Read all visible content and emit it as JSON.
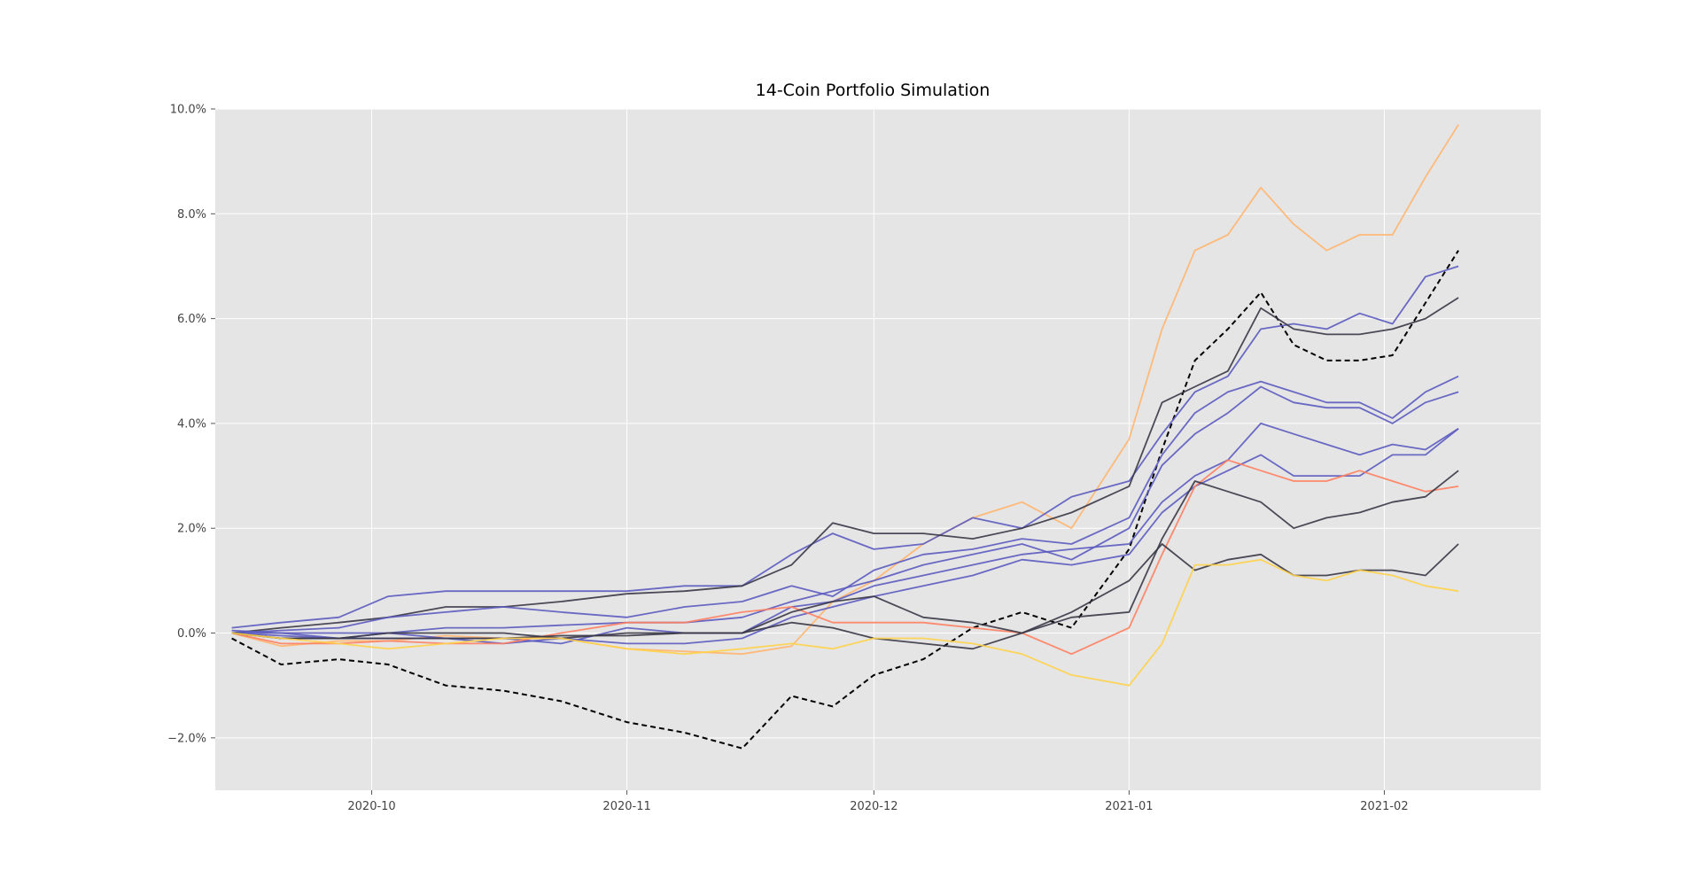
{
  "chart_data": {
    "type": "line",
    "title": "14-Coin Portfolio Simulation",
    "xlabel": "",
    "ylabel": "",
    "x_tick_labels": [
      "2020-10",
      "2020-11",
      "2020-12",
      "2021-01",
      "2021-02"
    ],
    "x_tick_dates": [
      "2020-10-01",
      "2020-11-01",
      "2020-12-01",
      "2021-01-01",
      "2021-02-01"
    ],
    "y_tick_labels": [
      "−2.0%",
      "0.0%",
      "2.0%",
      "4.0%",
      "6.0%",
      "8.0%",
      "10.0%"
    ],
    "y_ticks": [
      -2,
      0,
      2,
      4,
      6,
      8,
      10
    ],
    "xlim": [
      "2020-09-12",
      "2021-02-20"
    ],
    "ylim": [
      -3,
      10
    ],
    "y_unit": "%",
    "grid": true,
    "background": "#e5e5e5",
    "series_x": [
      "2020-09-14",
      "2020-09-20",
      "2020-09-27",
      "2020-10-03",
      "2020-10-10",
      "2020-10-17",
      "2020-10-24",
      "2020-11-01",
      "2020-11-08",
      "2020-11-15",
      "2020-11-21",
      "2020-11-26",
      "2020-12-01",
      "2020-12-07",
      "2020-12-13",
      "2020-12-19",
      "2020-12-25",
      "2021-01-01",
      "2021-01-05",
      "2021-01-09",
      "2021-01-13",
      "2021-01-17",
      "2021-01-21",
      "2021-01-25",
      "2021-01-29",
      "2021-02-02",
      "2021-02-06",
      "2021-02-10"
    ],
    "series": [
      {
        "color": "#ffb56e",
        "dashed": false,
        "values": [
          0.0,
          -0.25,
          -0.15,
          -0.15,
          -0.05,
          -0.1,
          -0.1,
          -0.3,
          -0.35,
          -0.4,
          -0.25,
          0.6,
          1.0,
          1.7,
          2.2,
          2.5,
          2.0,
          3.7,
          5.8,
          7.3,
          7.6,
          8.5,
          7.8,
          7.3,
          7.6,
          7.6,
          8.7,
          9.7
        ]
      },
      {
        "color": "#000000",
        "dashed": true,
        "values": [
          -0.1,
          -0.6,
          -0.5,
          -0.6,
          -1.0,
          -1.1,
          -1.3,
          -1.7,
          -1.9,
          -2.2,
          -1.2,
          -1.4,
          -0.8,
          -0.5,
          0.1,
          0.4,
          0.1,
          1.6,
          3.5,
          5.2,
          5.8,
          6.5,
          5.5,
          5.2,
          5.2,
          5.3,
          6.3,
          7.3
        ]
      },
      {
        "color": "#5b5bc0",
        "dashed": false,
        "values": [
          0.1,
          0.2,
          0.3,
          0.7,
          0.8,
          0.8,
          0.8,
          0.8,
          0.9,
          0.9,
          1.5,
          1.9,
          1.6,
          1.7,
          2.2,
          2.0,
          2.6,
          2.9,
          3.8,
          4.6,
          4.9,
          5.8,
          5.9,
          5.8,
          6.1,
          5.9,
          6.8,
          7.0
        ]
      },
      {
        "color": "#3a3746",
        "dashed": false,
        "values": [
          0.0,
          0.1,
          0.2,
          0.3,
          0.5,
          0.5,
          0.6,
          0.75,
          0.8,
          0.9,
          1.3,
          2.1,
          1.9,
          1.9,
          1.8,
          2.0,
          2.3,
          2.8,
          4.4,
          4.7,
          5.0,
          6.2,
          5.8,
          5.7,
          5.7,
          5.8,
          6.0,
          6.4
        ]
      },
      {
        "color": "#5b5bc0",
        "dashed": false,
        "values": [
          0.0,
          0.05,
          0.1,
          0.3,
          0.4,
          0.5,
          0.4,
          0.3,
          0.5,
          0.6,
          0.9,
          0.7,
          1.2,
          1.5,
          1.6,
          1.8,
          1.7,
          2.2,
          3.4,
          4.2,
          4.6,
          4.8,
          4.6,
          4.4,
          4.4,
          4.1,
          4.6,
          4.9
        ]
      },
      {
        "color": "#5b5bc0",
        "dashed": false,
        "values": [
          0.05,
          0.0,
          0.0,
          0.0,
          0.1,
          0.1,
          0.15,
          0.2,
          0.2,
          0.3,
          0.6,
          0.8,
          1.0,
          1.3,
          1.5,
          1.7,
          1.4,
          2.0,
          3.2,
          3.8,
          4.2,
          4.7,
          4.4,
          4.3,
          4.3,
          4.0,
          4.4,
          4.6
        ]
      },
      {
        "color": "#5b5bc0",
        "dashed": false,
        "values": [
          0.0,
          0.0,
          -0.1,
          0.0,
          -0.1,
          -0.1,
          -0.2,
          0.1,
          0.0,
          0.0,
          0.5,
          0.6,
          0.9,
          1.1,
          1.3,
          1.5,
          1.6,
          1.7,
          2.5,
          3.0,
          3.3,
          4.0,
          3.8,
          3.6,
          3.4,
          3.6,
          3.5,
          3.9
        ]
      },
      {
        "color": "#5b5bc0",
        "dashed": false,
        "values": [
          0.0,
          -0.05,
          -0.1,
          -0.1,
          -0.1,
          -0.2,
          -0.1,
          -0.2,
          -0.2,
          -0.1,
          0.3,
          0.5,
          0.7,
          0.9,
          1.1,
          1.4,
          1.3,
          1.5,
          2.3,
          2.8,
          3.1,
          3.4,
          3.0,
          3.0,
          3.0,
          3.4,
          3.4,
          3.9
        ]
      },
      {
        "color": "#ff8060",
        "dashed": false,
        "values": [
          0.0,
          -0.2,
          -0.2,
          -0.15,
          -0.2,
          -0.2,
          0.0,
          0.2,
          0.2,
          0.4,
          0.5,
          0.2,
          0.2,
          0.2,
          0.1,
          0.0,
          -0.4,
          0.1,
          1.5,
          2.8,
          3.3,
          3.1,
          2.9,
          2.9,
          3.1,
          2.9,
          2.7,
          2.8
        ]
      },
      {
        "color": "#3a3746",
        "dashed": false,
        "values": [
          0.0,
          -0.1,
          -0.1,
          0.0,
          0.0,
          0.0,
          -0.1,
          0.0,
          0.0,
          0.0,
          0.4,
          0.6,
          0.7,
          0.3,
          0.2,
          0.0,
          0.3,
          0.4,
          1.8,
          2.9,
          2.7,
          2.5,
          2.0,
          2.2,
          2.3,
          2.5,
          2.6,
          3.1
        ]
      },
      {
        "color": "#3a3746",
        "dashed": false,
        "values": [
          0.0,
          -0.1,
          -0.1,
          -0.1,
          -0.1,
          -0.1,
          -0.05,
          -0.05,
          0.0,
          0.0,
          0.2,
          0.1,
          -0.1,
          -0.2,
          -0.3,
          0.0,
          0.4,
          1.0,
          1.7,
          1.2,
          1.4,
          1.5,
          1.1,
          1.1,
          1.2,
          1.2,
          1.1,
          1.7
        ]
      },
      {
        "color": "#ffd24a",
        "dashed": false,
        "values": [
          0.0,
          -0.1,
          -0.2,
          -0.3,
          -0.2,
          -0.1,
          -0.1,
          -0.3,
          -0.4,
          -0.3,
          -0.2,
          -0.3,
          -0.1,
          -0.1,
          -0.2,
          -0.4,
          -0.8,
          -1.0,
          -0.2,
          1.3,
          1.3,
          1.4,
          1.1,
          1.0,
          1.2,
          1.1,
          0.9,
          0.8
        ]
      }
    ]
  }
}
